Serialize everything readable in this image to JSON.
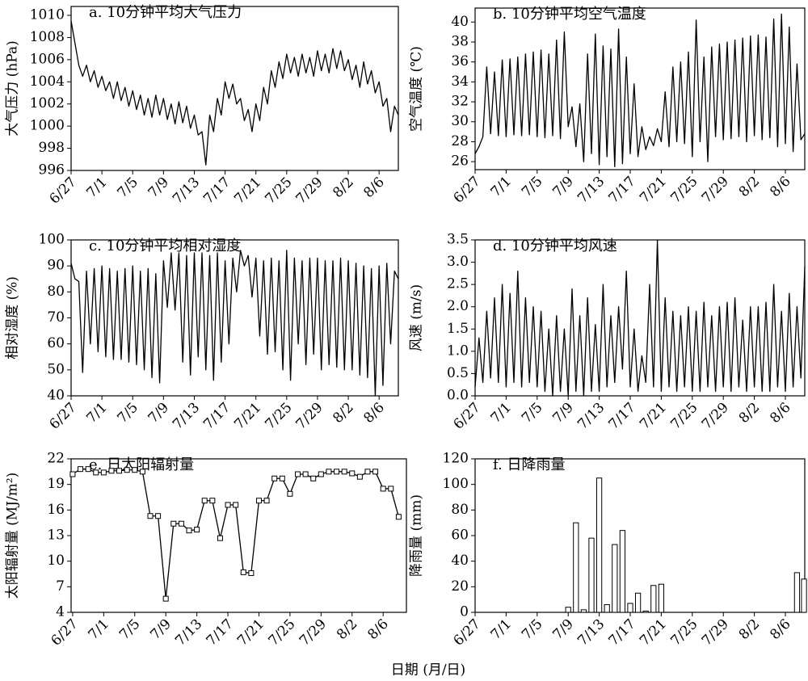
{
  "xlabel": "日期 (月/日)",
  "chart_data": [
    {
      "type": "line",
      "title": "a. 10分钟平均大气压力",
      "ylabel": "大气压力 (hPa)",
      "color": "#000000",
      "xlim": [
        0,
        42.5
      ],
      "ylim": [
        996,
        1010.8
      ],
      "yticks": [
        996,
        998,
        1000,
        1002,
        1004,
        1006,
        1008,
        1010
      ],
      "xticks": [
        {
          "value": 0,
          "label": "6/27"
        },
        {
          "value": 4,
          "label": "7/1"
        },
        {
          "value": 8,
          "label": "7/5"
        },
        {
          "value": 12,
          "label": "7/9"
        },
        {
          "value": 16,
          "label": "7/13"
        },
        {
          "value": 20,
          "label": "7/17"
        },
        {
          "value": 24,
          "label": "7/21"
        },
        {
          "value": 28,
          "label": "7/25"
        },
        {
          "value": 32,
          "label": "7/29"
        },
        {
          "value": 36,
          "label": "8/2"
        },
        {
          "value": 40,
          "label": "8/6"
        }
      ],
      "x": [
        0,
        0.5,
        1,
        1.5,
        2,
        2.5,
        3,
        3.5,
        4,
        4.5,
        5,
        5.5,
        6,
        6.5,
        7,
        7.5,
        8,
        8.5,
        9,
        9.5,
        10,
        10.5,
        11,
        11.5,
        12,
        12.5,
        13,
        13.5,
        14,
        14.5,
        15,
        15.5,
        16,
        16.5,
        17,
        17.5,
        18,
        18.5,
        19,
        19.5,
        20,
        20.5,
        21,
        21.5,
        22,
        22.5,
        23,
        23.5,
        24,
        24.5,
        25,
        25.5,
        26,
        26.5,
        27,
        27.5,
        28,
        28.5,
        29,
        29.5,
        30,
        30.5,
        31,
        31.5,
        32,
        32.5,
        33,
        33.5,
        34,
        34.5,
        35,
        35.5,
        36,
        36.5,
        37,
        37.5,
        38,
        38.5,
        39,
        39.5,
        40,
        40.5,
        41,
        41.5,
        42,
        42.5
      ],
      "values": [
        1009.5,
        1007.5,
        1005.5,
        1004.5,
        1005.5,
        1004,
        1005,
        1003.5,
        1004.5,
        1003.2,
        1004,
        1002.5,
        1004,
        1002.3,
        1003.5,
        1001.8,
        1003.2,
        1001.5,
        1002.8,
        1001,
        1002.5,
        1000.8,
        1002.8,
        1001,
        1002.5,
        1000.6,
        1002,
        1000.2,
        1002.2,
        1000.3,
        1001.8,
        999.8,
        1001,
        999.2,
        999.5,
        996.5,
        1001,
        999.5,
        1002.5,
        1001,
        1004,
        1002.5,
        1003.8,
        1002,
        1002.5,
        1000.5,
        1001.5,
        999.5,
        1002,
        1000.5,
        1003.5,
        1002,
        1005,
        1003.5,
        1005.8,
        1004.3,
        1006.5,
        1004.8,
        1006.2,
        1004.5,
        1006.5,
        1004.8,
        1006.2,
        1004.5,
        1006.8,
        1005,
        1006.5,
        1004.8,
        1007,
        1005.2,
        1006.8,
        1005,
        1006,
        1004.2,
        1005.5,
        1003.5,
        1005.8,
        1003.8,
        1005,
        1003,
        1004,
        1001.8,
        1002.5,
        999.5,
        1001.8,
        1001
      ]
    },
    {
      "type": "line",
      "title": "b. 10分钟平均空气温度",
      "ylabel": "空气温度 (℃)",
      "color": "#000000",
      "xlim": [
        0,
        42.5
      ],
      "ylim": [
        25.2,
        41.4
      ],
      "yticks": [
        26,
        28,
        30,
        32,
        34,
        36,
        38,
        40
      ],
      "xticks": [
        {
          "value": 0,
          "label": "6/27"
        },
        {
          "value": 4,
          "label": "7/1"
        },
        {
          "value": 8,
          "label": "7/5"
        },
        {
          "value": 12,
          "label": "7/9"
        },
        {
          "value": 16,
          "label": "7/13"
        },
        {
          "value": 20,
          "label": "7/17"
        },
        {
          "value": 24,
          "label": "7/21"
        },
        {
          "value": 28,
          "label": "7/25"
        },
        {
          "value": 32,
          "label": "7/29"
        },
        {
          "value": 36,
          "label": "8/2"
        },
        {
          "value": 40,
          "label": "8/6"
        }
      ],
      "x": [
        0,
        0.5,
        1,
        1.5,
        2,
        2.5,
        3,
        3.5,
        4,
        4.5,
        5,
        5.5,
        6,
        6.5,
        7,
        7.5,
        8,
        8.5,
        9,
        9.5,
        10,
        10.5,
        11,
        11.5,
        12,
        12.5,
        13,
        13.5,
        14,
        14.5,
        15,
        15.5,
        16,
        16.5,
        17,
        17.5,
        18,
        18.5,
        19,
        19.5,
        20,
        20.5,
        21,
        21.5,
        22,
        22.5,
        23,
        23.5,
        24,
        24.5,
        25,
        25.5,
        26,
        26.5,
        27,
        27.5,
        28,
        28.5,
        29,
        29.5,
        30,
        30.5,
        31,
        31.5,
        32,
        32.5,
        33,
        33.5,
        34,
        34.5,
        35,
        35.5,
        36,
        36.5,
        37,
        37.5,
        38,
        38.5,
        39,
        39.5,
        40,
        40.5,
        41,
        41.5,
        42,
        42.5
      ],
      "values": [
        26.8,
        27.5,
        28.5,
        35.5,
        28.8,
        35,
        28.6,
        36.2,
        28.5,
        36.3,
        28.7,
        36.5,
        28.6,
        36.8,
        28.7,
        37,
        28.5,
        37.2,
        28.4,
        36.8,
        28.6,
        38.2,
        28.3,
        39,
        29.5,
        31.5,
        27.5,
        31.8,
        26,
        36.8,
        26.8,
        38.8,
        25.7,
        37.6,
        26.5,
        37.3,
        25.5,
        39.3,
        25.8,
        36.5,
        26.8,
        33.8,
        26.5,
        29.5,
        27.2,
        28.5,
        27.6,
        29.3,
        28,
        33,
        27.5,
        35.5,
        28,
        36,
        27.8,
        37,
        26.5,
        40.2,
        28,
        36.5,
        26,
        37.5,
        28.5,
        37.8,
        28.2,
        38,
        28.3,
        38.2,
        28.5,
        38.4,
        28,
        38.6,
        28.6,
        38.7,
        28.2,
        38.5,
        28.4,
        40.3,
        27.5,
        40.8,
        27.8,
        39.5,
        27,
        35.8,
        28.2,
        28.8
      ]
    },
    {
      "type": "line",
      "title": "c. 10分钟平均相对湿度",
      "ylabel": "相对湿度 (%)",
      "color": "#000000",
      "xlim": [
        0,
        42.5
      ],
      "ylim": [
        40,
        100
      ],
      "yticks": [
        40,
        50,
        60,
        70,
        80,
        90,
        100
      ],
      "xticks": [
        {
          "value": 0,
          "label": "6/27"
        },
        {
          "value": 4,
          "label": "7/1"
        },
        {
          "value": 8,
          "label": "7/5"
        },
        {
          "value": 12,
          "label": "7/9"
        },
        {
          "value": 16,
          "label": "7/13"
        },
        {
          "value": 20,
          "label": "7/17"
        },
        {
          "value": 24,
          "label": "7/21"
        },
        {
          "value": 28,
          "label": "7/25"
        },
        {
          "value": 32,
          "label": "7/29"
        },
        {
          "value": 36,
          "label": "8/2"
        },
        {
          "value": 40,
          "label": "8/6"
        }
      ],
      "x": [
        0,
        0.5,
        1,
        1.5,
        2,
        2.5,
        3,
        3.5,
        4,
        4.5,
        5,
        5.5,
        6,
        6.5,
        7,
        7.5,
        8,
        8.5,
        9,
        9.5,
        10,
        10.5,
        11,
        11.5,
        12,
        12.5,
        13,
        13.5,
        14,
        14.5,
        15,
        15.5,
        16,
        16.5,
        17,
        17.5,
        18,
        18.5,
        19,
        19.5,
        20,
        20.5,
        21,
        21.5,
        22,
        22.5,
        23,
        23.5,
        24,
        24.5,
        25,
        25.5,
        26,
        26.5,
        27,
        27.5,
        28,
        28.5,
        29,
        29.5,
        30,
        30.5,
        31,
        31.5,
        32,
        32.5,
        33,
        33.5,
        34,
        34.5,
        35,
        35.5,
        36,
        36.5,
        37,
        37.5,
        38,
        38.5,
        39,
        39.5,
        40,
        40.5,
        41,
        41.5,
        42,
        42.5
      ],
      "values": [
        91,
        85,
        84,
        49,
        88,
        60,
        89,
        57,
        90,
        55,
        89,
        54,
        88,
        54,
        89,
        53,
        90,
        52,
        88,
        50,
        89,
        47,
        87,
        45,
        92,
        74,
        95,
        73,
        95,
        53,
        94,
        48,
        95,
        55,
        95,
        50,
        94,
        46,
        95,
        53,
        92,
        60,
        93,
        80,
        96,
        90,
        94,
        78,
        93,
        63,
        92,
        56,
        93,
        57,
        92,
        50,
        96,
        46,
        93,
        60,
        92,
        52,
        93,
        56,
        93,
        50,
        92,
        52,
        92,
        51,
        93,
        50,
        92,
        50,
        91,
        48,
        90,
        47,
        89,
        40,
        90,
        44,
        91,
        60,
        88,
        85
      ]
    },
    {
      "type": "line",
      "title": "d. 10分钟平均风速",
      "ylabel": "风速 (m/s)",
      "color": "#000000",
      "xlim": [
        0,
        42.5
      ],
      "ylim": [
        0,
        3.5
      ],
      "yticks": [
        {
          "value": 0,
          "label": "0.0"
        },
        0.5,
        {
          "value": 1,
          "label": "1.0"
        },
        1.5,
        {
          "value": 2,
          "label": "2.0"
        },
        2.5,
        {
          "value": 3,
          "label": "3.0"
        },
        3.5
      ],
      "xticks": [
        {
          "value": 0,
          "label": "6/27"
        },
        {
          "value": 4,
          "label": "7/1"
        },
        {
          "value": 8,
          "label": "7/5"
        },
        {
          "value": 12,
          "label": "7/9"
        },
        {
          "value": 16,
          "label": "7/13"
        },
        {
          "value": 20,
          "label": "7/17"
        },
        {
          "value": 24,
          "label": "7/21"
        },
        {
          "value": 28,
          "label": "7/25"
        },
        {
          "value": 32,
          "label": "7/29"
        },
        {
          "value": 36,
          "label": "8/2"
        },
        {
          "value": 40,
          "label": "8/6"
        }
      ],
      "x": [
        0,
        0.5,
        1,
        1.5,
        2,
        2.5,
        3,
        3.5,
        4,
        4.5,
        5,
        5.5,
        6,
        6.5,
        7,
        7.5,
        8,
        8.5,
        9,
        9.5,
        10,
        10.5,
        11,
        11.5,
        12,
        12.5,
        13,
        13.5,
        14,
        14.5,
        15,
        15.5,
        16,
        16.5,
        17,
        17.5,
        18,
        18.5,
        19,
        19.5,
        20,
        20.5,
        21,
        21.5,
        22,
        22.5,
        23,
        23.5,
        24,
        24.5,
        25,
        25.5,
        26,
        26.5,
        27,
        27.5,
        28,
        28.5,
        29,
        29.5,
        30,
        30.5,
        31,
        31.5,
        32,
        32.5,
        33,
        33.5,
        34,
        34.5,
        35,
        35.5,
        36,
        36.5,
        37,
        37.5,
        38,
        38.5,
        39,
        39.5,
        40,
        40.5,
        41,
        41.5,
        42,
        42.5
      ],
      "values": [
        0.2,
        1.3,
        0.3,
        1.9,
        0.4,
        2.2,
        0.3,
        2.5,
        0.2,
        2.3,
        0.3,
        2.8,
        0.2,
        2.2,
        0.3,
        2.0,
        0.2,
        1.9,
        0.1,
        1.5,
        0.0,
        1.8,
        0.1,
        1.5,
        0.0,
        2.4,
        0.1,
        1.8,
        0.0,
        2.2,
        0.1,
        1.6,
        0.1,
        2.5,
        0.2,
        1.8,
        0.3,
        2.0,
        0.6,
        2.8,
        0.2,
        1.5,
        0.1,
        0.9,
        0.3,
        2.5,
        0.2,
        3.5,
        0.1,
        2.2,
        0.2,
        1.9,
        0.1,
        1.8,
        0.2,
        2.0,
        0.1,
        1.9,
        0.1,
        2.1,
        0.2,
        1.8,
        0.1,
        2.0,
        0.2,
        2.1,
        0.1,
        2.2,
        0.2,
        1.7,
        0.1,
        2.0,
        0.2,
        2.0,
        0.1,
        2.1,
        0.1,
        2.5,
        0.2,
        1.9,
        0.1,
        2.3,
        0.2,
        2.0,
        0.4,
        2.9
      ]
    },
    {
      "type": "line",
      "marker": "square",
      "title": "e. 日太阳辐射量",
      "ylabel": "太阳辐射量 (MJ/m²)",
      "color": "#000000",
      "xlim": [
        -0.2,
        43
      ],
      "ylim": [
        4,
        22
      ],
      "yticks": [
        4,
        7,
        10,
        13,
        16,
        19,
        22
      ],
      "xticks": [
        {
          "value": 0,
          "label": "6/27"
        },
        {
          "value": 4,
          "label": "7/1"
        },
        {
          "value": 8,
          "label": "7/5"
        },
        {
          "value": 12,
          "label": "7/9"
        },
        {
          "value": 16,
          "label": "7/13"
        },
        {
          "value": 20,
          "label": "7/17"
        },
        {
          "value": 24,
          "label": "7/21"
        },
        {
          "value": 28,
          "label": "7/25"
        },
        {
          "value": 32,
          "label": "7/29"
        },
        {
          "value": 36,
          "label": "8/2"
        },
        {
          "value": 40,
          "label": "8/6"
        }
      ],
      "x": [
        0,
        1,
        2,
        3,
        4,
        5,
        6,
        7,
        8,
        9,
        10,
        11,
        12,
        13,
        14,
        15,
        16,
        17,
        18,
        19,
        20,
        21,
        22,
        23,
        24,
        25,
        26,
        27,
        28,
        29,
        30,
        31,
        32,
        33,
        34,
        35,
        36,
        37,
        38,
        39,
        40,
        41,
        42
      ],
      "values": [
        20.2,
        20.8,
        20.8,
        20.4,
        20.4,
        20.6,
        20.6,
        20.7,
        20.7,
        20.5,
        15.3,
        15.3,
        5.6,
        14.4,
        14.4,
        13.6,
        13.7,
        17.1,
        17.1,
        12.7,
        16.6,
        16.6,
        8.7,
        8.6,
        17.1,
        17.1,
        19.7,
        19.7,
        17.9,
        20.2,
        20.2,
        19.7,
        20.2,
        20.5,
        20.5,
        20.5,
        20.3,
        19.9,
        20.5,
        20.5,
        18.5,
        18.5,
        15.2
      ]
    },
    {
      "type": "bar",
      "title": "f. 日降雨量",
      "ylabel": "降雨量 (mm)",
      "color": "#ffffff",
      "xlim": [
        0,
        42.5
      ],
      "ylim": [
        0,
        120
      ],
      "yticks": [
        0,
        20,
        40,
        60,
        80,
        100,
        120
      ],
      "xticks": [
        {
          "value": 0,
          "label": "6/27"
        },
        {
          "value": 4,
          "label": "7/1"
        },
        {
          "value": 8,
          "label": "7/5"
        },
        {
          "value": 12,
          "label": "7/9"
        },
        {
          "value": 16,
          "label": "7/13"
        },
        {
          "value": 20,
          "label": "7/17"
        },
        {
          "value": 24,
          "label": "7/21"
        },
        {
          "value": 28,
          "label": "7/25"
        },
        {
          "value": 32,
          "label": "7/29"
        },
        {
          "value": 36,
          "label": "8/2"
        },
        {
          "value": 40,
          "label": "8/6"
        }
      ],
      "x": [
        12,
        13,
        14,
        15,
        16,
        17,
        18,
        19,
        20,
        21,
        22,
        23,
        24,
        41.5,
        42.4
      ],
      "values": [
        4,
        70,
        2,
        58,
        105,
        6,
        53,
        64,
        7,
        15,
        1,
        21,
        22,
        31,
        26
      ]
    }
  ]
}
